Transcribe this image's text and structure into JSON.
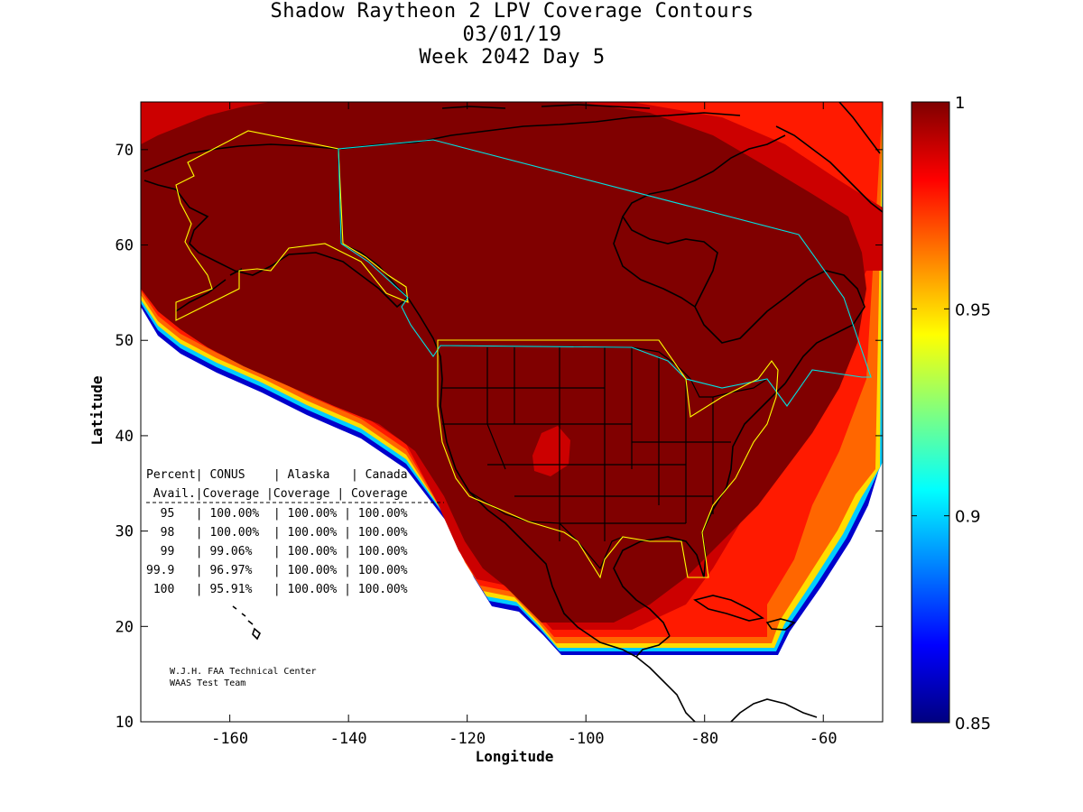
{
  "title": {
    "line1": "Shadow Raytheon 2 LPV Coverage Contours",
    "line2": "03/01/19",
    "line3": "Week 2042 Day 5"
  },
  "axes": {
    "xlabel": "Longitude",
    "ylabel": "Latitude",
    "xlim": [
      -175,
      -50
    ],
    "ylim": [
      10,
      75
    ],
    "xticks": [
      -160,
      -140,
      -120,
      -100,
      -80,
      -60
    ],
    "yticks": [
      10,
      20,
      30,
      40,
      50,
      60,
      70
    ]
  },
  "colorbar": {
    "min": 0.85,
    "max": 1,
    "ticks": [
      "1",
      "0.95",
      "0.9",
      "0.85"
    ],
    "tick_values": [
      1,
      0.95,
      0.9,
      0.85
    ]
  },
  "table": {
    "header1": "Percent| CONUS    | Alaska   | Canada",
    "header2": " Avail.|Coverage |Coverage | Coverage",
    "rows": [
      "  95   | 100.00%  | 100.00% | 100.00%",
      "  98   | 100.00%  | 100.00% | 100.00%",
      "  99   | 99.06%   | 100.00% | 100.00%",
      "99.9   | 96.97%   | 100.00% | 100.00%",
      " 100   | 95.91%   | 100.00% | 100.00%"
    ]
  },
  "credit": {
    "line1": "W.J.H. FAA Technical Center",
    "line2": "WAAS Test Team"
  },
  "colors": {
    "full_coverage": "#800000",
    "high": "#cc0000",
    "mid": "#ff1a00",
    "orange": "#ff6600",
    "yellow": "#ffdd00",
    "cyan": "#00ccff",
    "blue": "#0000cc"
  }
}
